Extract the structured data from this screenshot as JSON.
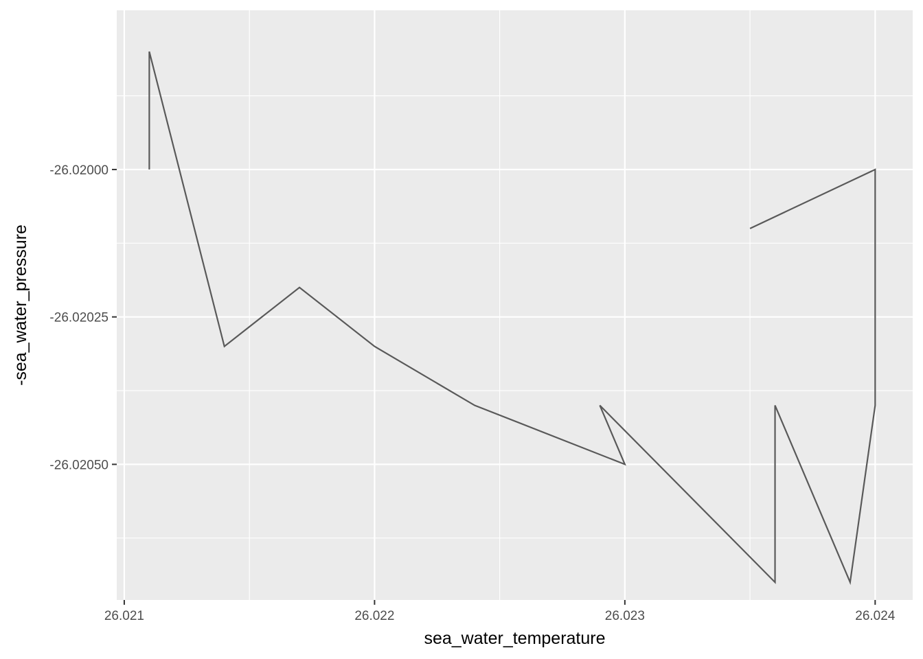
{
  "chart_data": {
    "type": "line",
    "title": "",
    "xlabel": "sea_water_temperature",
    "ylabel": "-sea_water_pressure",
    "x_ticks": [
      26.021,
      26.022,
      26.023,
      26.024
    ],
    "x_tick_labels": [
      "26.021",
      "26.022",
      "26.023",
      "26.024"
    ],
    "y_ticks": [
      -26.02,
      -26.02025,
      -26.0205
    ],
    "y_tick_labels": [
      "-26.02000",
      "-26.02025",
      "-26.02050"
    ],
    "xlim": [
      26.02097,
      26.02415
    ],
    "ylim": [
      -26.02073,
      -26.01973
    ],
    "grid": true,
    "series": [
      {
        "x": [
          26.0211,
          26.0211,
          26.0214,
          26.0217,
          26.022,
          26.0224,
          26.023,
          26.0229,
          26.0236,
          26.0236,
          26.0239,
          26.024,
          26.024,
          26.0235
        ],
        "y": [
          -26.02,
          -26.0198,
          -26.0203,
          -26.0202,
          -26.0203,
          -26.0204,
          -26.0205,
          -26.0204,
          -26.0207,
          -26.0204,
          -26.0207,
          -26.0204,
          -26.02,
          -26.0201
        ]
      }
    ],
    "colors": {
      "panel": "#ebebeb",
      "grid_major": "#ffffff",
      "line": "#595959",
      "tick": "#333333"
    }
  }
}
